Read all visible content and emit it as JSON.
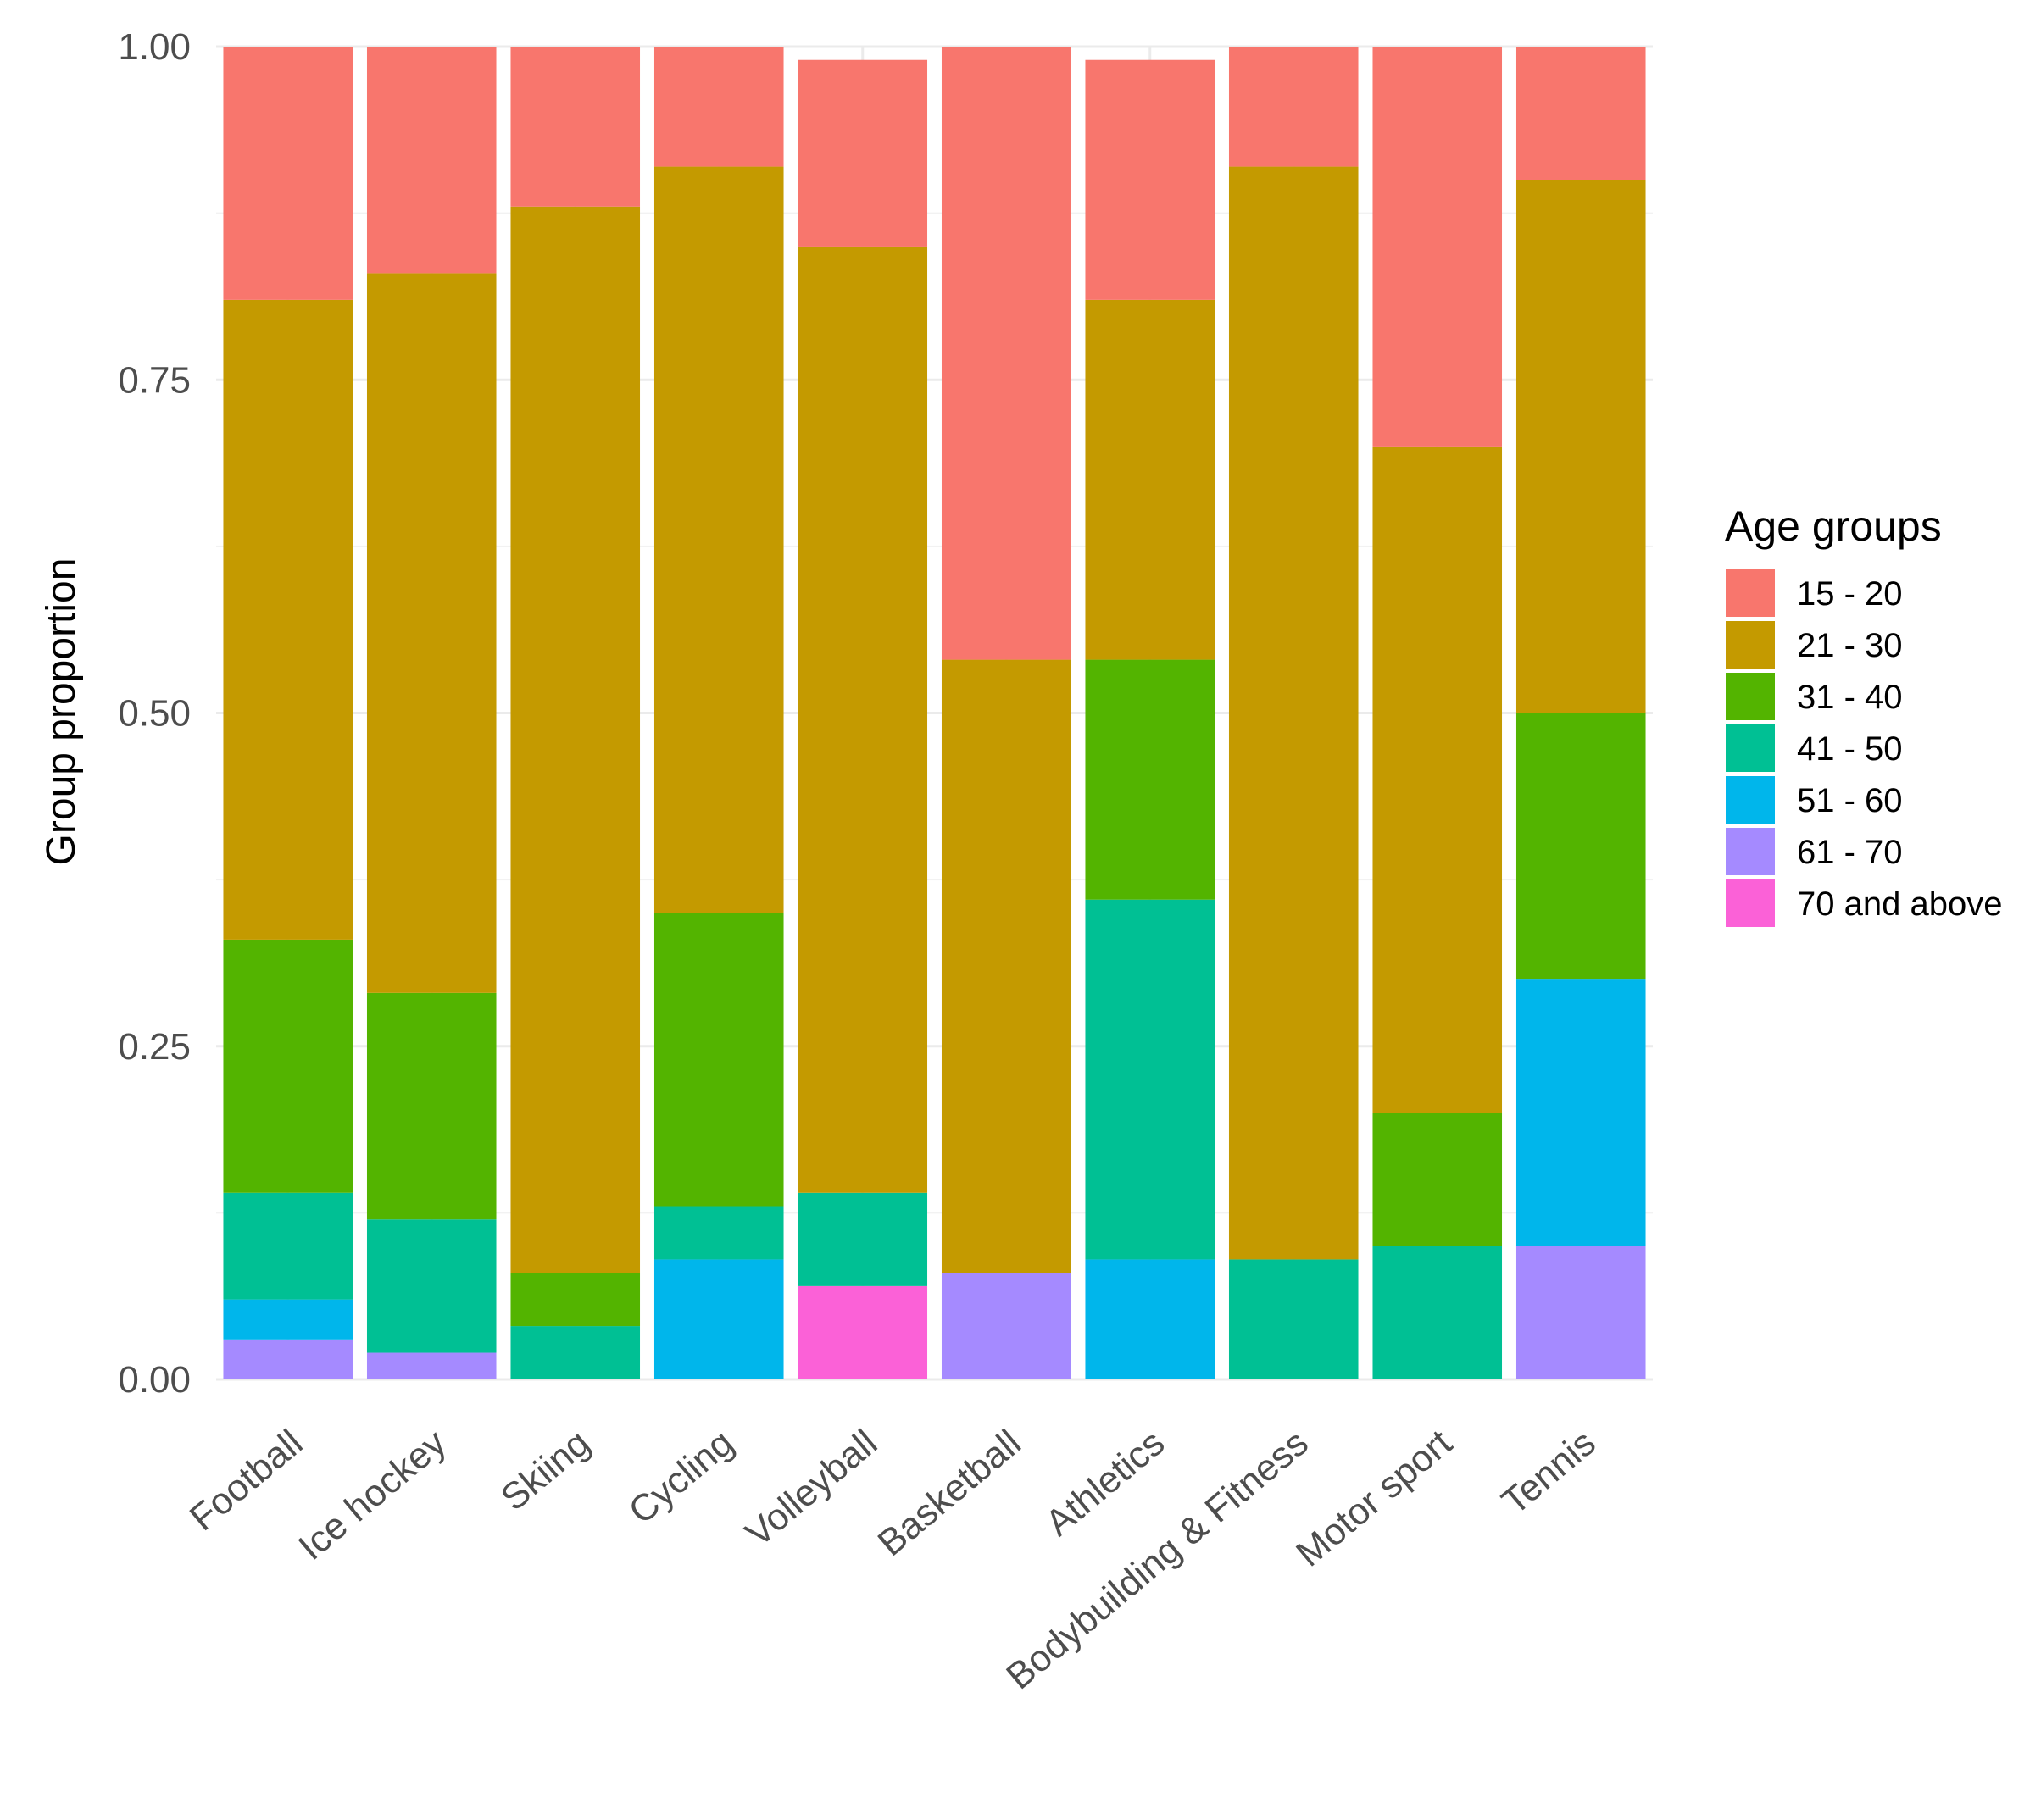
{
  "chart_data": {
    "type": "bar",
    "stacked": true,
    "title": "",
    "xlabel": "",
    "ylabel": "Group proportion",
    "ylim": [
      0,
      1
    ],
    "yticks": [
      "0.00",
      "0.25",
      "0.50",
      "0.75",
      "1.00"
    ],
    "grid": true,
    "legend_position": "right",
    "legend_title": "Age groups",
    "categories": [
      "Football",
      "Ice hockey",
      "Skiing",
      "Cycling",
      "Volleyball",
      "Basketball",
      "Athletics",
      "Bodybuilding & Fitness",
      "Motor sport",
      "Tennis"
    ],
    "series": [
      {
        "name": "15 - 20",
        "color": "#F8766D",
        "values": [
          0.19,
          0.17,
          0.12,
          0.09,
          0.14,
          0.46,
          0.18,
          0.09,
          0.3,
          0.1
        ]
      },
      {
        "name": "21 - 30",
        "color": "#C49A00",
        "values": [
          0.48,
          0.54,
          0.8,
          0.56,
          0.71,
          0.46,
          0.27,
          0.82,
          0.5,
          0.4
        ]
      },
      {
        "name": "31 - 40",
        "color": "#53B400",
        "values": [
          0.19,
          0.17,
          0.04,
          0.22,
          0.0,
          0.0,
          0.18,
          0.0,
          0.1,
          0.2
        ]
      },
      {
        "name": "41 - 50",
        "color": "#00C094",
        "values": [
          0.08,
          0.1,
          0.04,
          0.04,
          0.07,
          0.0,
          0.27,
          0.09,
          0.1,
          0.0
        ]
      },
      {
        "name": "51 - 60",
        "color": "#00B6EB",
        "values": [
          0.03,
          0.0,
          0.0,
          0.09,
          0.0,
          0.0,
          0.09,
          0.0,
          0.0,
          0.2
        ]
      },
      {
        "name": "61 - 70",
        "color": "#A58AFF",
        "values": [
          0.03,
          0.02,
          0.0,
          0.0,
          0.0,
          0.08,
          0.0,
          0.0,
          0.0,
          0.1
        ]
      },
      {
        "name": "70 and above",
        "color": "#FB61D7",
        "values": [
          0.0,
          0.0,
          0.0,
          0.0,
          0.07,
          0.0,
          0.0,
          0.0,
          0.0,
          0.0
        ]
      }
    ]
  }
}
